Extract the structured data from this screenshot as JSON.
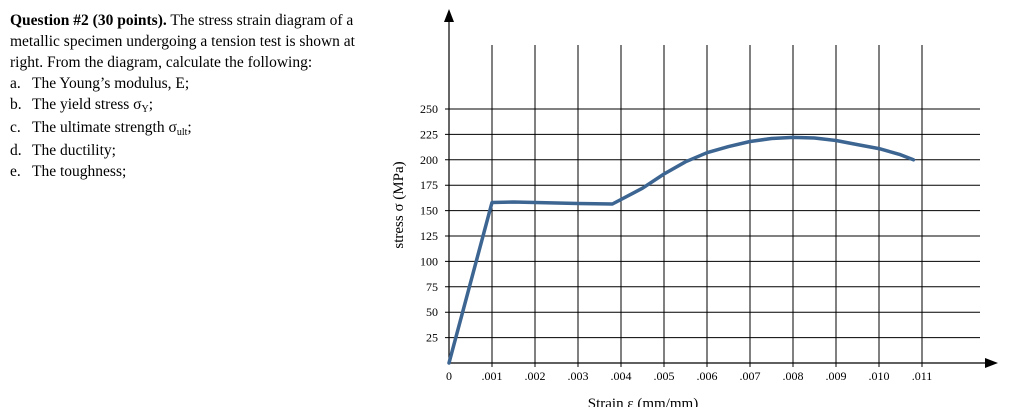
{
  "question": {
    "heading": "Question #2 (30 points).",
    "intro": "The stress strain diagram of a metallic specimen undergoing a tension test is shown at right. From the diagram, calculate the following:",
    "items": [
      {
        "letter": "a.",
        "text": "The Young’s modulus, E;",
        "sub": "",
        "after": ""
      },
      {
        "letter": "b.",
        "text": "The yield stress σ",
        "sub": "Y",
        "after": ";"
      },
      {
        "letter": "c.",
        "text": "The ultimate strength σ",
        "sub": "ult",
        "after": ";"
      },
      {
        "letter": "d.",
        "text": "The ductility;",
        "sub": "",
        "after": ""
      },
      {
        "letter": "e.",
        "text": "The toughness;",
        "sub": "",
        "after": ""
      }
    ]
  },
  "chart_data": {
    "type": "line",
    "xlabel": "Strain ε (mm/mm)",
    "ylabel": "stress σ (MPa)",
    "x_ticks": [
      "0",
      ".001",
      ".002",
      ".003",
      ".004",
      ".005",
      ".006",
      ".007",
      ".008",
      ".009",
      ".010",
      ".011"
    ],
    "y_ticks": [
      "25",
      "50",
      "75",
      "100",
      "125",
      "150",
      "175",
      "200",
      "225",
      "250"
    ],
    "xlim": [
      0,
      0.0125
    ],
    "ylim": [
      0,
      250
    ],
    "grid": true,
    "line_color": "#3d6592",
    "points": [
      {
        "x": 0,
        "y": 0
      },
      {
        "x": 0.001,
        "y": 158
      },
      {
        "x": 0.0015,
        "y": 158.5
      },
      {
        "x": 0.002,
        "y": 158
      },
      {
        "x": 0.003,
        "y": 157
      },
      {
        "x": 0.0038,
        "y": 156.5
      },
      {
        "x": 0.0045,
        "y": 172
      },
      {
        "x": 0.005,
        "y": 186
      },
      {
        "x": 0.0055,
        "y": 198
      },
      {
        "x": 0.006,
        "y": 207
      },
      {
        "x": 0.0065,
        "y": 213
      },
      {
        "x": 0.007,
        "y": 218
      },
      {
        "x": 0.0075,
        "y": 221
      },
      {
        "x": 0.008,
        "y": 222
      },
      {
        "x": 0.0085,
        "y": 221.5
      },
      {
        "x": 0.009,
        "y": 219
      },
      {
        "x": 0.0095,
        "y": 215
      },
      {
        "x": 0.01,
        "y": 211
      },
      {
        "x": 0.0105,
        "y": 205
      },
      {
        "x": 0.0108,
        "y": 200
      }
    ]
  }
}
